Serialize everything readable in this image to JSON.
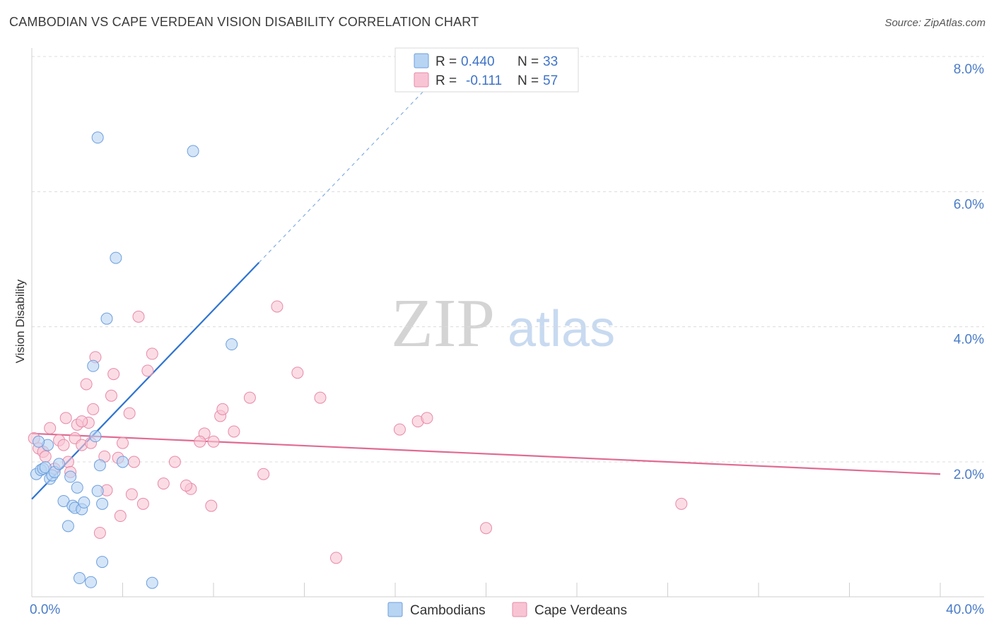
{
  "title": "CAMBODIAN VS CAPE VERDEAN VISION DISABILITY CORRELATION CHART",
  "source": "Source: ZipAtlas.com",
  "watermark": {
    "zip": "ZIP",
    "atlas": "atlas"
  },
  "colors": {
    "cambodians_fill": "#b8d4f3",
    "cambodians_stroke": "#6d9fdd",
    "cambodians_line": "#2f74d0",
    "capeverdeans_fill": "#f8c4d4",
    "capeverdeans_stroke": "#e88aa8",
    "capeverdeans_line": "#e06b93",
    "grid": "#dcdcdc",
    "tick_label": "#4a7cc8"
  },
  "legend": {
    "r_label": "R =",
    "n_label": "N =",
    "rows": [
      {
        "r": "0.440",
        "n": "33"
      },
      {
        "r": "-0.111",
        "n": "57"
      }
    ]
  },
  "bottom_legend": [
    "Cambodians",
    "Cape Verdeans"
  ],
  "chart_data": {
    "type": "scatter",
    "title": "CAMBODIAN VS CAPE VERDEAN VISION DISABILITY CORRELATION CHART",
    "xlabel": "",
    "ylabel": "Vision Disability",
    "xlim": [
      0,
      40
    ],
    "ylim": [
      0,
      8.4
    ],
    "x_tick_labels": [
      "0.0%",
      "40.0%"
    ],
    "y_ticks": [
      2,
      4,
      6,
      8
    ],
    "y_tick_labels": [
      "2.0%",
      "4.0%",
      "6.0%",
      "8.0%"
    ],
    "grid": true,
    "legend_position": "top-center",
    "series": [
      {
        "name": "Cambodians",
        "r": 0.44,
        "n": 33,
        "trend": {
          "x0": 0,
          "y0": 1.45,
          "x1": 10,
          "y1": 4.95,
          "dashed_to_x": 17.5
        },
        "points": [
          [
            0.2,
            1.82
          ],
          [
            0.4,
            1.88
          ],
          [
            0.5,
            1.9
          ],
          [
            0.6,
            1.92
          ],
          [
            0.7,
            2.25
          ],
          [
            0.8,
            1.75
          ],
          [
            0.9,
            1.8
          ],
          [
            1.0,
            1.85
          ],
          [
            1.2,
            1.97
          ],
          [
            1.4,
            1.42
          ],
          [
            1.6,
            1.05
          ],
          [
            1.8,
            1.35
          ],
          [
            1.9,
            1.32
          ],
          [
            2.0,
            1.62
          ],
          [
            2.1,
            0.28
          ],
          [
            2.2,
            1.3
          ],
          [
            2.3,
            1.4
          ],
          [
            2.6,
            0.22
          ],
          [
            2.7,
            3.42
          ],
          [
            2.9,
            1.57
          ],
          [
            3.0,
            1.95
          ],
          [
            3.1,
            1.38
          ],
          [
            3.3,
            4.12
          ],
          [
            2.8,
            2.38
          ],
          [
            1.7,
            1.78
          ],
          [
            2.9,
            6.8
          ],
          [
            3.1,
            0.52
          ],
          [
            3.7,
            5.02
          ],
          [
            4.0,
            2.0
          ],
          [
            5.3,
            0.21
          ],
          [
            7.1,
            6.6
          ],
          [
            8.8,
            3.74
          ],
          [
            0.3,
            2.3
          ]
        ]
      },
      {
        "name": "Cape Verdeans",
        "r": -0.111,
        "n": 57,
        "trend": {
          "x0": 0,
          "y0": 2.42,
          "x1": 40,
          "y1": 1.82
        },
        "points": [
          [
            0.1,
            2.35
          ],
          [
            0.3,
            2.2
          ],
          [
            0.5,
            2.15
          ],
          [
            0.6,
            2.08
          ],
          [
            0.8,
            2.5
          ],
          [
            1.0,
            1.9
          ],
          [
            1.2,
            2.32
          ],
          [
            1.4,
            2.25
          ],
          [
            1.5,
            2.65
          ],
          [
            1.6,
            2.0
          ],
          [
            1.7,
            1.85
          ],
          [
            1.9,
            2.35
          ],
          [
            2.0,
            2.55
          ],
          [
            2.2,
            2.25
          ],
          [
            2.4,
            3.15
          ],
          [
            2.5,
            2.58
          ],
          [
            2.6,
            2.28
          ],
          [
            2.7,
            2.78
          ],
          [
            2.8,
            3.55
          ],
          [
            3.2,
            2.08
          ],
          [
            3.3,
            1.58
          ],
          [
            3.5,
            2.98
          ],
          [
            3.6,
            3.3
          ],
          [
            3.8,
            2.06
          ],
          [
            4.0,
            2.28
          ],
          [
            4.3,
            2.72
          ],
          [
            4.4,
            1.52
          ],
          [
            4.5,
            2.0
          ],
          [
            4.7,
            4.15
          ],
          [
            4.9,
            1.38
          ],
          [
            5.1,
            3.35
          ],
          [
            5.3,
            3.6
          ],
          [
            5.8,
            1.68
          ],
          [
            6.3,
            2.0
          ],
          [
            7.0,
            1.6
          ],
          [
            7.6,
            2.42
          ],
          [
            7.9,
            1.35
          ],
          [
            8.3,
            2.68
          ],
          [
            8.4,
            2.78
          ],
          [
            8.9,
            2.45
          ],
          [
            9.6,
            2.95
          ],
          [
            10.2,
            1.82
          ],
          [
            10.8,
            4.3
          ],
          [
            11.7,
            3.32
          ],
          [
            12.7,
            2.95
          ],
          [
            13.4,
            0.58
          ],
          [
            16.2,
            2.48
          ],
          [
            17.0,
            2.6
          ],
          [
            17.4,
            2.65
          ],
          [
            20.0,
            1.02
          ],
          [
            28.6,
            1.38
          ],
          [
            3.0,
            0.95
          ],
          [
            3.9,
            1.2
          ],
          [
            6.8,
            1.65
          ],
          [
            8.0,
            2.3
          ],
          [
            7.4,
            2.3
          ],
          [
            2.2,
            2.6
          ]
        ]
      }
    ]
  }
}
